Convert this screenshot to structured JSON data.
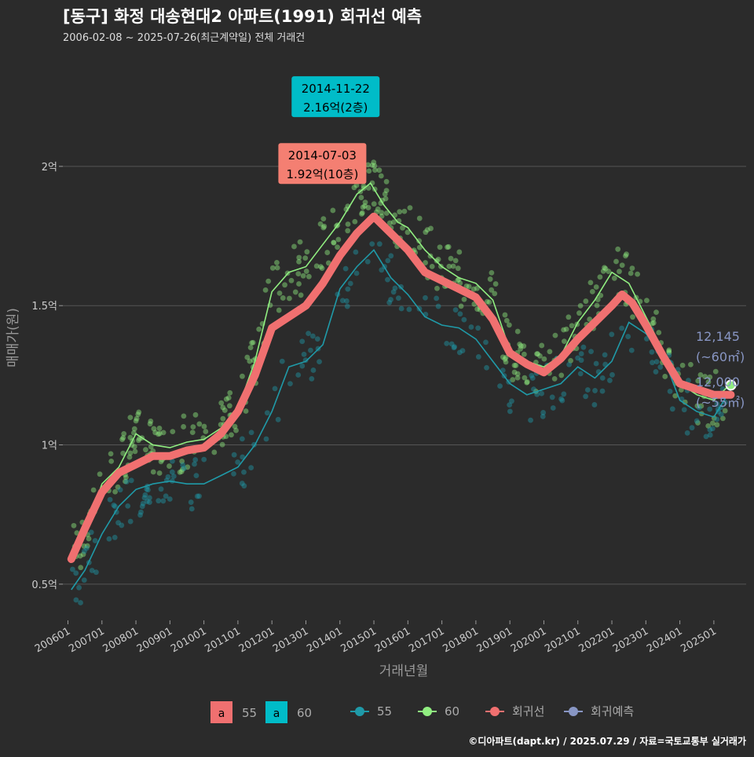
{
  "chart_data": {
    "type": "scatter",
    "title": "[동구] 화정 대송현대2 아파트(1991) 회귀선 예측",
    "subtitle": "2006-02-08 ~ 2025-07-26(최근계약일) 전체 거래건",
    "xlabel": "거래년월",
    "ylabel": "매매가(원)",
    "caption": "©디아파트(dapt.kr) / 2025.07.29 / 자료=국토교통부 실거래가",
    "x_ticks": [
      "200601",
      "200701",
      "200801",
      "200901",
      "201001",
      "201101",
      "201201",
      "201301",
      "201401",
      "201501",
      "201601",
      "201701",
      "201801",
      "201901",
      "202001",
      "202101",
      "202201",
      "202301",
      "202401",
      "202501"
    ],
    "y_ticks": [
      {
        "value": 0.5,
        "label": "0.5억"
      },
      {
        "value": 1,
        "label": "1억"
      },
      {
        "value": 1.5,
        "label": "1.5억"
      },
      {
        "value": 2,
        "label": "2억"
      }
    ],
    "xlim": [
      2005.85,
      2025.95
    ],
    "ylim": [
      0.37,
      2.4
    ],
    "colors": {
      "background": "#2b2b2b",
      "grid": "#555555",
      "text": "#bbbbbb",
      "s55": "#1f9aa8",
      "s60": "#90ee80",
      "regression": "#f07070",
      "forecast": "#8896c4",
      "annot_red": "#f47f72",
      "annot_cyan": "#00bcc8"
    },
    "annotations": [
      {
        "date": "2014-11-22",
        "price": "2.16억(2층)",
        "x": 2014.89,
        "y": 2.16,
        "color": "cyan"
      },
      {
        "date": "2014-07-03",
        "price": "1.92억(10층)",
        "x": 2014.5,
        "y": 1.92,
        "color": "red"
      }
    ],
    "end_labels": [
      {
        "value": "12,145",
        "area": "(~60㎡)",
        "color": "#8896c4",
        "x": 2025.5,
        "y": 1.2145
      },
      {
        "value": "12,000",
        "area": "(~55㎡)",
        "color": "#8896c4",
        "x": 2025.5,
        "y": 1.2
      }
    ],
    "regression": {
      "x": [
        2006.1,
        2006.5,
        2007.0,
        2007.5,
        2008.0,
        2008.5,
        2009.0,
        2009.5,
        2010.0,
        2010.5,
        2011.0,
        2011.5,
        2012.0,
        2012.5,
        2013.0,
        2013.5,
        2014.0,
        2014.5,
        2015.0,
        2015.5,
        2016.0,
        2016.5,
        2017.0,
        2017.5,
        2018.0,
        2018.5,
        2019.0,
        2019.5,
        2020.0,
        2020.5,
        2021.0,
        2021.5,
        2022.0,
        2022.3,
        2022.6,
        2023.0,
        2023.5,
        2024.0,
        2024.5,
        2025.0,
        2025.5
      ],
      "y": [
        0.59,
        0.7,
        0.83,
        0.9,
        0.93,
        0.96,
        0.96,
        0.98,
        0.99,
        1.04,
        1.12,
        1.25,
        1.42,
        1.46,
        1.5,
        1.58,
        1.68,
        1.76,
        1.82,
        1.76,
        1.7,
        1.62,
        1.59,
        1.56,
        1.53,
        1.45,
        1.33,
        1.29,
        1.26,
        1.31,
        1.38,
        1.44,
        1.5,
        1.54,
        1.51,
        1.43,
        1.32,
        1.22,
        1.2,
        1.18,
        1.18
      ]
    },
    "series": [
      {
        "name": "55",
        "x": [
          2006.1,
          2006.5,
          2007.0,
          2007.5,
          2008.0,
          2008.5,
          2009.0,
          2009.5,
          2010.0,
          2010.5,
          2011.0,
          2011.5,
          2012.0,
          2012.5,
          2013.0,
          2013.5,
          2014.0,
          2014.5,
          2015.0,
          2015.5,
          2016.0,
          2016.5,
          2017.0,
          2017.5,
          2018.0,
          2018.5,
          2019.0,
          2019.5,
          2020.0,
          2020.5,
          2021.0,
          2021.5,
          2022.0,
          2022.5,
          2023.0,
          2023.5,
          2024.0,
          2024.5,
          2025.0,
          2025.5
        ],
        "y": [
          0.48,
          0.55,
          0.68,
          0.78,
          0.84,
          0.86,
          0.87,
          0.86,
          0.86,
          0.89,
          0.92,
          1.0,
          1.12,
          1.28,
          1.3,
          1.36,
          1.56,
          1.64,
          1.7,
          1.6,
          1.54,
          1.46,
          1.43,
          1.42,
          1.38,
          1.3,
          1.22,
          1.18,
          1.2,
          1.22,
          1.28,
          1.24,
          1.3,
          1.44,
          1.4,
          1.32,
          1.16,
          1.12,
          1.1,
          1.2
        ]
      },
      {
        "name": "60",
        "x": [
          2006.1,
          2006.5,
          2007.0,
          2007.5,
          2008.0,
          2008.5,
          2009.0,
          2009.5,
          2010.0,
          2010.5,
          2011.0,
          2011.5,
          2012.0,
          2012.5,
          2013.0,
          2013.5,
          2014.0,
          2014.5,
          2014.9,
          2015.3,
          2015.7,
          2016.0,
          2016.5,
          2017.0,
          2017.5,
          2018.0,
          2018.5,
          2019.0,
          2019.5,
          2020.0,
          2020.5,
          2021.0,
          2021.5,
          2022.0,
          2022.5,
          2023.0,
          2023.5,
          2024.0,
          2024.5,
          2025.0,
          2025.5
        ],
        "y": [
          0.6,
          0.68,
          0.86,
          0.92,
          1.04,
          1.0,
          0.99,
          1.01,
          1.02,
          1.06,
          1.13,
          1.3,
          1.55,
          1.62,
          1.64,
          1.72,
          1.8,
          1.9,
          1.94,
          1.86,
          1.8,
          1.78,
          1.7,
          1.64,
          1.6,
          1.58,
          1.52,
          1.34,
          1.3,
          1.28,
          1.32,
          1.44,
          1.52,
          1.62,
          1.58,
          1.46,
          1.34,
          1.22,
          1.18,
          1.16,
          1.22
        ]
      }
    ],
    "forecast": {
      "x": [
        2025.5
      ],
      "y": [
        1.2145
      ]
    },
    "legend": {
      "fill_keys": [
        {
          "label": "55",
          "color": "#f07070",
          "glyph": "a"
        },
        {
          "label": "60",
          "color": "#00bcc8",
          "glyph": "a"
        }
      ],
      "line_keys": [
        {
          "label": "55",
          "color": "#1f9aa8"
        },
        {
          "label": "60",
          "color": "#90ee80"
        },
        {
          "label": "회귀선",
          "color": "#f07070"
        },
        {
          "label": "회귀예측",
          "color": "#8896c4"
        }
      ],
      "placement": "bottom"
    }
  }
}
